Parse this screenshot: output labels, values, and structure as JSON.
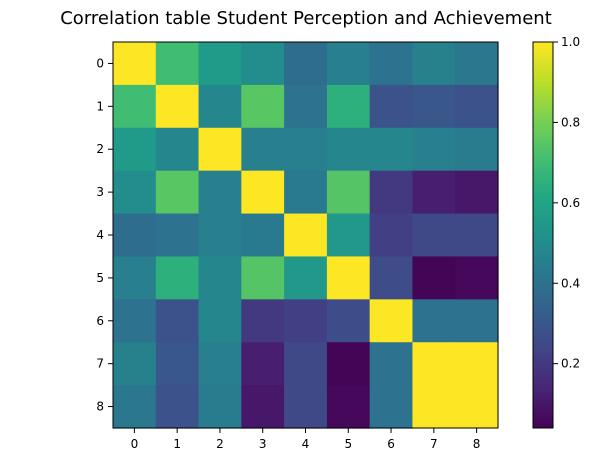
{
  "chart_data": {
    "type": "heatmap",
    "title": "Correlation table Student Perception and Achievement",
    "xlabel": "",
    "ylabel": "",
    "x_ticks": [
      "0",
      "1",
      "2",
      "3",
      "4",
      "5",
      "6",
      "7",
      "8"
    ],
    "y_ticks": [
      "0",
      "1",
      "2",
      "3",
      "4",
      "5",
      "6",
      "7",
      "8"
    ],
    "colormap": "viridis",
    "colorbar": {
      "vmin": 0.04,
      "vmax": 1.0,
      "ticks": [
        0.2,
        0.4,
        0.6,
        0.8,
        1.0
      ],
      "tick_labels": [
        "0.2",
        "0.4",
        "0.6",
        "0.8",
        "1.0"
      ]
    },
    "matrix": [
      [
        1.0,
        0.7,
        0.56,
        0.5,
        0.38,
        0.45,
        0.4,
        0.46,
        0.42
      ],
      [
        0.7,
        1.0,
        0.48,
        0.75,
        0.4,
        0.65,
        0.28,
        0.3,
        0.28
      ],
      [
        0.56,
        0.48,
        1.0,
        0.45,
        0.45,
        0.48,
        0.48,
        0.45,
        0.44
      ],
      [
        0.5,
        0.75,
        0.45,
        1.0,
        0.43,
        0.74,
        0.2,
        0.12,
        0.1
      ],
      [
        0.38,
        0.4,
        0.45,
        0.43,
        1.0,
        0.55,
        0.22,
        0.25,
        0.25
      ],
      [
        0.45,
        0.65,
        0.48,
        0.74,
        0.55,
        1.0,
        0.26,
        0.05,
        0.06
      ],
      [
        0.4,
        0.28,
        0.48,
        0.2,
        0.22,
        0.26,
        1.0,
        0.4,
        0.4
      ],
      [
        0.46,
        0.3,
        0.45,
        0.12,
        0.25,
        0.05,
        0.4,
        1.0,
        1.0
      ],
      [
        0.42,
        0.28,
        0.44,
        0.1,
        0.25,
        0.06,
        0.4,
        1.0,
        1.0
      ]
    ]
  }
}
